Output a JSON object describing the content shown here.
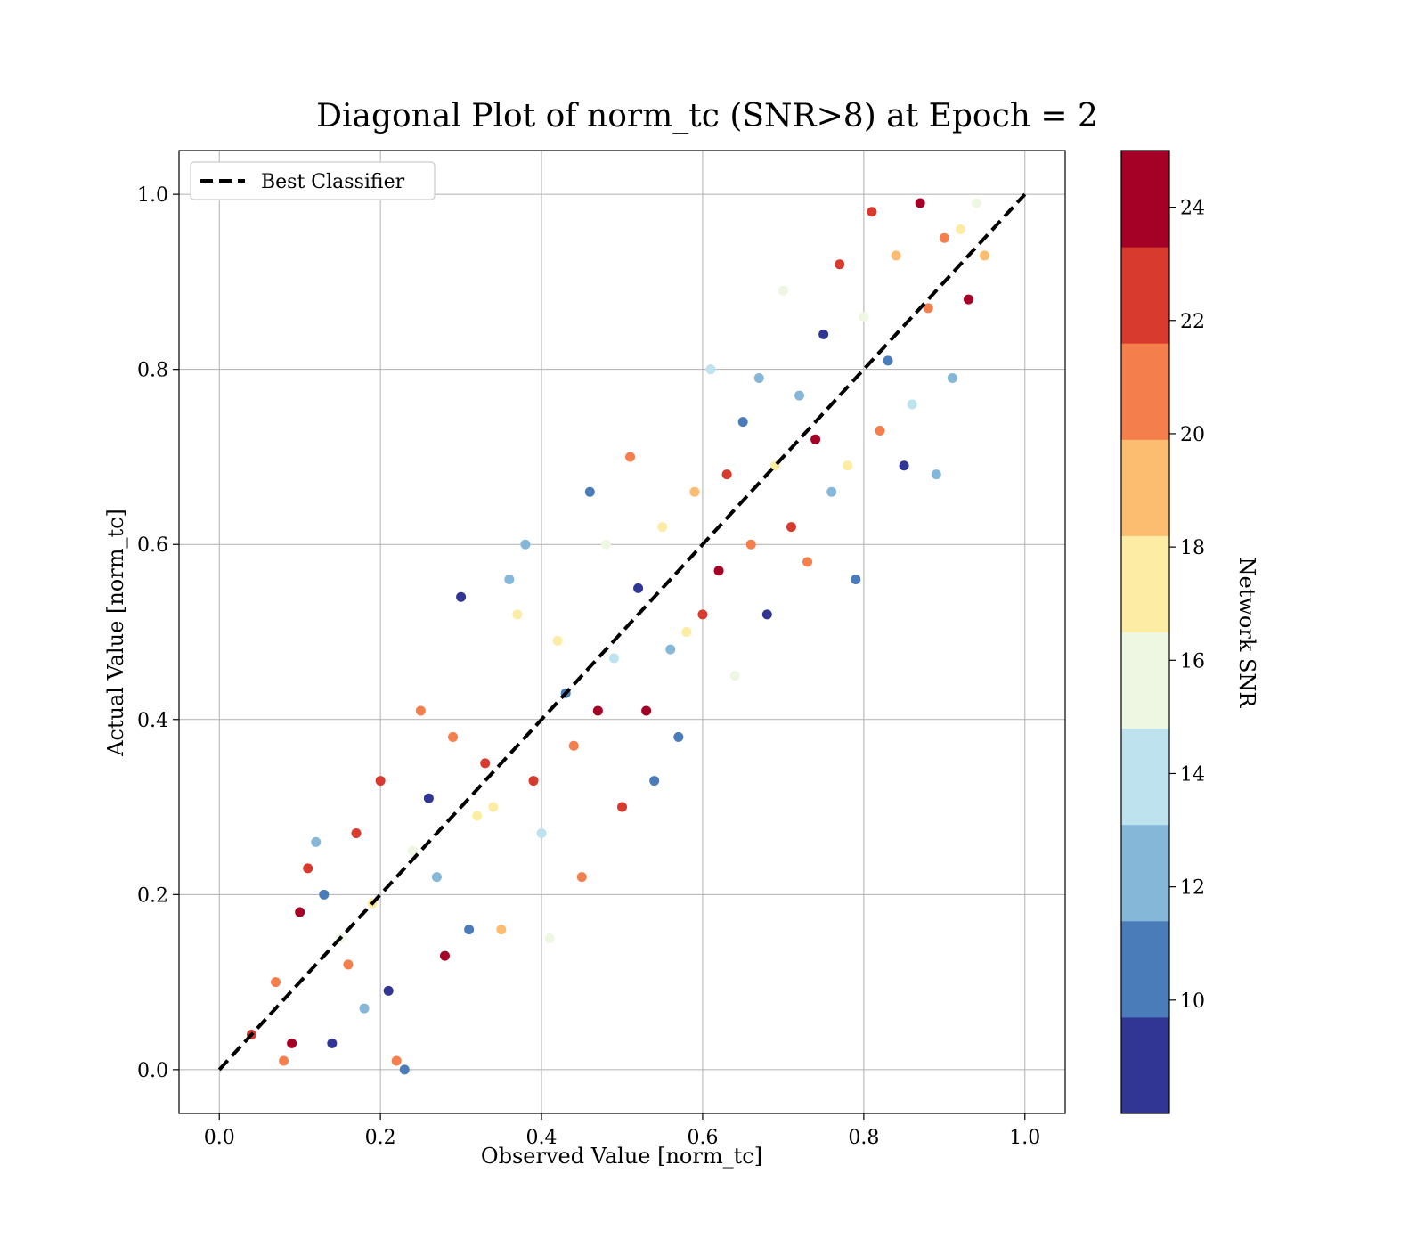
{
  "chart_data": {
    "type": "scatter",
    "title": "Diagonal Plot of norm_tc (SNR>8) at Epoch = 2",
    "xlabel": "Observed Value [norm_tc]",
    "ylabel": "Actual Value [norm_tc]",
    "xlim": [
      -0.05,
      1.05
    ],
    "ylim": [
      -0.05,
      1.05
    ],
    "xticks": [
      "0.0",
      "0.2",
      "0.4",
      "0.6",
      "0.8",
      "1.0"
    ],
    "yticks": [
      "0.0",
      "0.2",
      "0.4",
      "0.6",
      "0.8",
      "1.0"
    ],
    "grid": true,
    "legend": {
      "placement": "upper-left",
      "entries": [
        "Best Classifier"
      ]
    },
    "reference_line": {
      "name": "Best Classifier",
      "x": [
        0,
        1
      ],
      "y": [
        0,
        1
      ],
      "style": "dashed",
      "color": "#000000"
    },
    "colorbar": {
      "label": "Network SNR",
      "range": [
        8,
        25
      ],
      "ticks": [
        "10",
        "12",
        "14",
        "16",
        "18",
        "20",
        "22",
        "24"
      ],
      "colormap": [
        "#313695",
        "#4575b4",
        "#74add1",
        "#abd9e9",
        "#e0f3f8",
        "#fee090",
        "#fdae61",
        "#f46d43",
        "#d73027",
        "#a50026"
      ],
      "colors": [
        "#313695",
        "#4a7cb9",
        "#85b7d8",
        "#bee2ee",
        "#eef7e2",
        "#fdeca3",
        "#fdbd71",
        "#f57e4d",
        "#d83a2d",
        "#a50026"
      ]
    },
    "points": [
      [
        0.04,
        0.04,
        23
      ],
      [
        0.07,
        0.1,
        20
      ],
      [
        0.08,
        0.01,
        21
      ],
      [
        0.09,
        0.03,
        24
      ],
      [
        0.1,
        0.18,
        24
      ],
      [
        0.11,
        0.23,
        22
      ],
      [
        0.12,
        0.26,
        12
      ],
      [
        0.13,
        0.2,
        10
      ],
      [
        0.14,
        0.03,
        8
      ],
      [
        0.15,
        0.15,
        16
      ],
      [
        0.16,
        0.12,
        20
      ],
      [
        0.17,
        0.27,
        23
      ],
      [
        0.18,
        0.07,
        12
      ],
      [
        0.19,
        0.19,
        18
      ],
      [
        0.2,
        0.33,
        22
      ],
      [
        0.21,
        0.09,
        8
      ],
      [
        0.22,
        0.01,
        21
      ],
      [
        0.23,
        0.0,
        10
      ],
      [
        0.24,
        0.25,
        15
      ],
      [
        0.25,
        0.41,
        21
      ],
      [
        0.26,
        0.31,
        9
      ],
      [
        0.27,
        0.22,
        13
      ],
      [
        0.28,
        0.13,
        24
      ],
      [
        0.29,
        0.38,
        20
      ],
      [
        0.3,
        0.54,
        9
      ],
      [
        0.31,
        0.16,
        11
      ],
      [
        0.32,
        0.29,
        17
      ],
      [
        0.33,
        0.35,
        23
      ],
      [
        0.34,
        0.3,
        18
      ],
      [
        0.35,
        0.16,
        19
      ],
      [
        0.36,
        0.56,
        12
      ],
      [
        0.37,
        0.52,
        17
      ],
      [
        0.38,
        0.6,
        13
      ],
      [
        0.39,
        0.33,
        22
      ],
      [
        0.4,
        0.27,
        14
      ],
      [
        0.41,
        0.15,
        15
      ],
      [
        0.42,
        0.49,
        18
      ],
      [
        0.43,
        0.43,
        10
      ],
      [
        0.44,
        0.37,
        21
      ],
      [
        0.45,
        0.22,
        21
      ],
      [
        0.46,
        0.66,
        10
      ],
      [
        0.47,
        0.41,
        24
      ],
      [
        0.48,
        0.6,
        16
      ],
      [
        0.49,
        0.47,
        14
      ],
      [
        0.5,
        0.3,
        22
      ],
      [
        0.51,
        0.7,
        20
      ],
      [
        0.52,
        0.55,
        9
      ],
      [
        0.53,
        0.41,
        24
      ],
      [
        0.54,
        0.33,
        10
      ],
      [
        0.55,
        0.62,
        18
      ],
      [
        0.56,
        0.48,
        12
      ],
      [
        0.57,
        0.38,
        11
      ],
      [
        0.58,
        0.5,
        17
      ],
      [
        0.59,
        0.66,
        19
      ],
      [
        0.6,
        0.52,
        23
      ],
      [
        0.61,
        0.8,
        14
      ],
      [
        0.62,
        0.57,
        24
      ],
      [
        0.63,
        0.68,
        22
      ],
      [
        0.64,
        0.45,
        16
      ],
      [
        0.65,
        0.74,
        10
      ],
      [
        0.66,
        0.6,
        21
      ],
      [
        0.67,
        0.79,
        13
      ],
      [
        0.68,
        0.52,
        9
      ],
      [
        0.69,
        0.69,
        18
      ],
      [
        0.7,
        0.89,
        16
      ],
      [
        0.71,
        0.62,
        22
      ],
      [
        0.72,
        0.77,
        12
      ],
      [
        0.73,
        0.58,
        20
      ],
      [
        0.74,
        0.72,
        24
      ],
      [
        0.75,
        0.84,
        8
      ],
      [
        0.76,
        0.66,
        13
      ],
      [
        0.77,
        0.92,
        22
      ],
      [
        0.78,
        0.69,
        17
      ],
      [
        0.79,
        0.56,
        11
      ],
      [
        0.8,
        0.86,
        15
      ],
      [
        0.81,
        0.98,
        23
      ],
      [
        0.82,
        0.73,
        21
      ],
      [
        0.83,
        0.81,
        10
      ],
      [
        0.84,
        0.93,
        19
      ],
      [
        0.85,
        0.69,
        9
      ],
      [
        0.86,
        0.76,
        14
      ],
      [
        0.87,
        0.99,
        24
      ],
      [
        0.88,
        0.87,
        20
      ],
      [
        0.89,
        0.68,
        12
      ],
      [
        0.9,
        0.95,
        21
      ],
      [
        0.91,
        0.79,
        13
      ],
      [
        0.92,
        0.96,
        18
      ],
      [
        0.93,
        0.88,
        24
      ],
      [
        0.94,
        0.99,
        15
      ],
      [
        0.95,
        0.93,
        19
      ]
    ]
  }
}
